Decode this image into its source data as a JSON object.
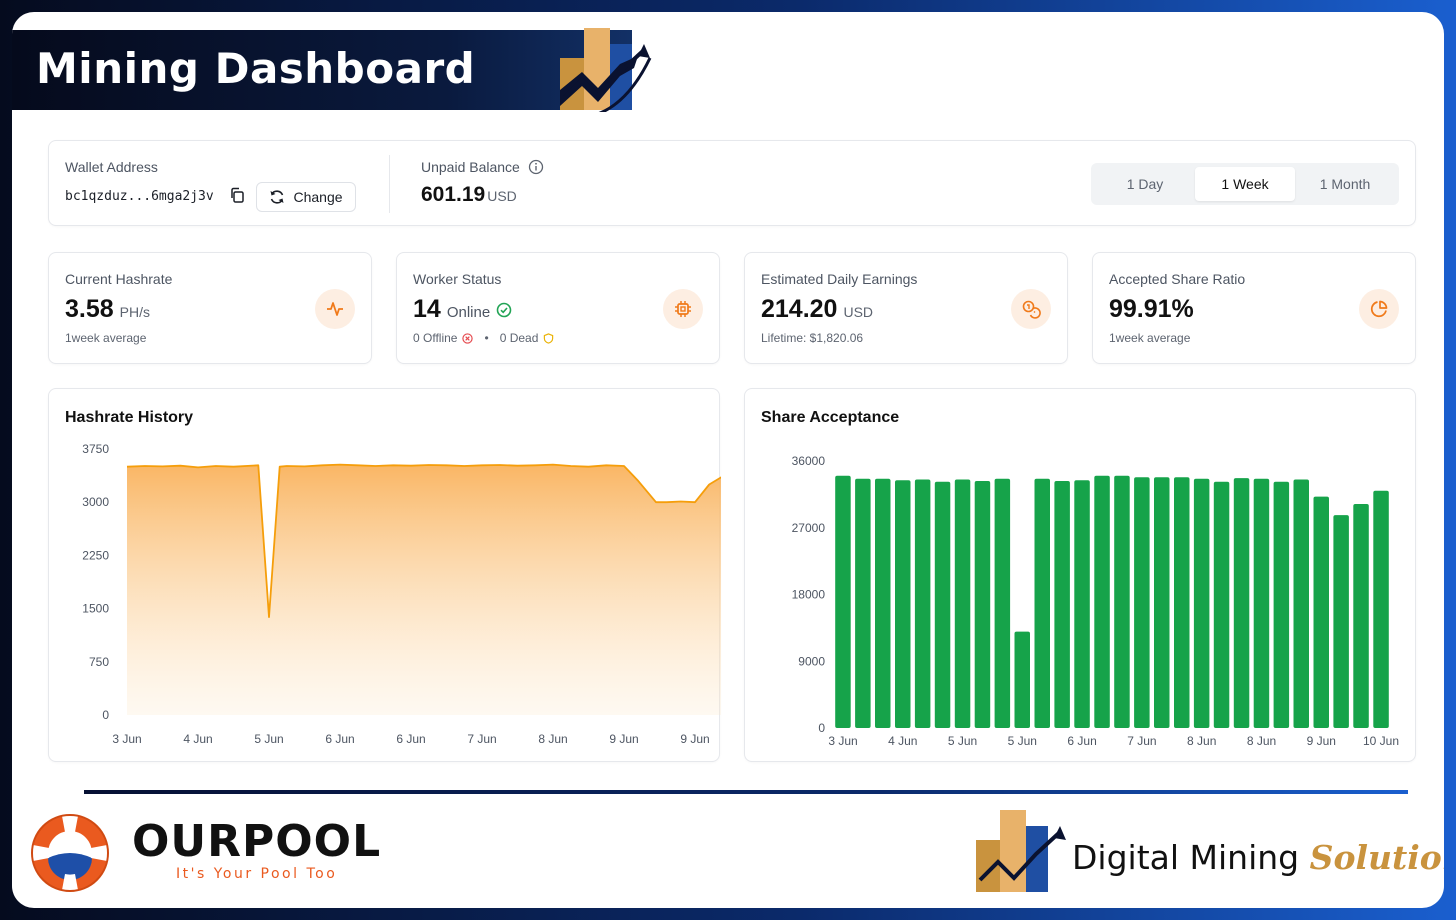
{
  "header": {
    "title": "Mining Dashboard"
  },
  "wallet": {
    "label": "Wallet Address",
    "address": "bc1qzduz...6mga2j3v",
    "change_label": "Change",
    "unpaid_label": "Unpaid Balance",
    "unpaid_value": "601.19",
    "unpaid_unit": "USD"
  },
  "range": {
    "options": [
      "1 Day",
      "1 Week",
      "1 Month"
    ],
    "selected": "1 Week"
  },
  "stats": {
    "hashrate": {
      "label": "Current Hashrate",
      "value": "3.58",
      "unit": "PH/s",
      "sub": "1week average",
      "icon": "activity-icon"
    },
    "workers": {
      "label": "Worker Status",
      "value": "14",
      "online_label": "Online",
      "offline": "0 Offline",
      "dead": "0 Dead",
      "icon": "cpu-icon"
    },
    "earnings": {
      "label": "Estimated Daily Earnings",
      "value": "214.20",
      "unit": "USD",
      "sub": "Lifetime: $1,820.06",
      "icon": "coins-icon"
    },
    "shares": {
      "label": "Accepted Share Ratio",
      "value": "99.91%",
      "sub": "1week average",
      "icon": "pie-chart-icon"
    }
  },
  "colors": {
    "accent": "#f59e0b",
    "icon_bg": "#fdeee2",
    "bar": "#16a34a",
    "online": "#22a455",
    "offline": "#e5484d",
    "dead": "#eab308"
  },
  "chart_data": [
    {
      "type": "area",
      "title": "Hashrate History",
      "ylim": [
        0,
        3750
      ],
      "yticks": [
        0,
        750,
        1500,
        2250,
        3000,
        3750
      ],
      "xticks": [
        "3 Jun",
        "4 Jun",
        "5 Jun",
        "6 Jun",
        "6 Jun",
        "7 Jun",
        "8 Jun",
        "9 Jun",
        "9 Jun"
      ],
      "x": [
        0,
        0.25,
        0.5,
        0.75,
        1.0,
        1.25,
        1.5,
        1.85,
        2.0,
        2.15,
        2.25,
        2.5,
        2.75,
        3.0,
        3.25,
        3.5,
        3.75,
        4.0,
        4.25,
        4.5,
        4.75,
        5.0,
        5.25,
        5.5,
        5.75,
        6.0,
        6.25,
        6.5,
        6.75,
        7.0,
        7.2,
        7.45,
        7.6,
        7.8,
        8.0,
        8.2,
        8.45,
        8.65
      ],
      "values": [
        3500,
        3510,
        3505,
        3515,
        3490,
        3510,
        3500,
        3520,
        1380,
        3500,
        3510,
        3505,
        3520,
        3530,
        3520,
        3510,
        3520,
        3515,
        3525,
        3520,
        3510,
        3520,
        3525,
        3515,
        3520,
        3530,
        3510,
        3500,
        3520,
        3510,
        3300,
        3000,
        3000,
        3010,
        3000,
        3250,
        3400,
        3500
      ]
    },
    {
      "type": "bar",
      "title": "Share Acceptance",
      "ylim": [
        0,
        36000
      ],
      "yticks": [
        0,
        9000,
        18000,
        27000,
        36000
      ],
      "xticks": [
        "3 Jun",
        "4 Jun",
        "5 Jun",
        "5 Jun",
        "6 Jun",
        "7 Jun",
        "8 Jun",
        "8 Jun",
        "9 Jun",
        "10 Jun"
      ],
      "values": [
        34000,
        33600,
        33600,
        33400,
        33500,
        33200,
        33500,
        33300,
        33600,
        13000,
        33600,
        33300,
        33400,
        34000,
        34000,
        33800,
        33800,
        33800,
        33600,
        33200,
        33700,
        33600,
        33200,
        33500,
        31200,
        28700,
        30200,
        32000
      ]
    }
  ],
  "footer": {
    "ourpool_name": "OURPOOL",
    "ourpool_tagline": "It's Your Pool Too",
    "dms_name": "Digital Mining",
    "dms_accent": "Solutions"
  }
}
